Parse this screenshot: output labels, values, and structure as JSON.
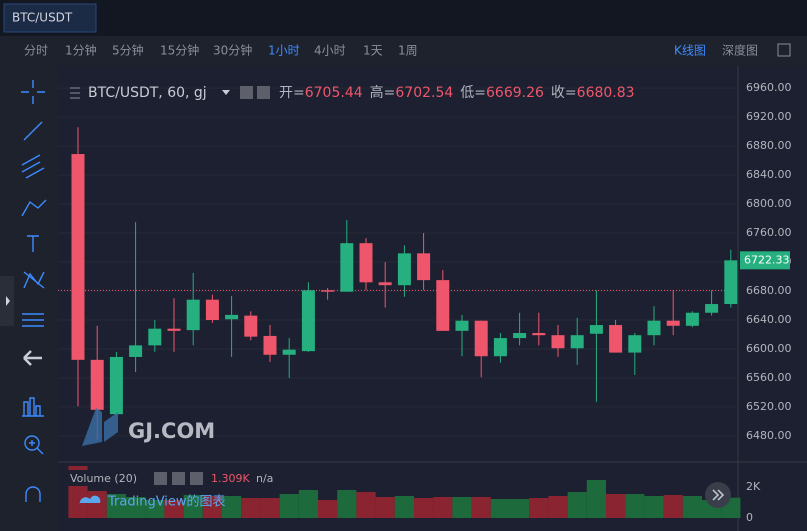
{
  "ui": {
    "tab": "BTC/USDT",
    "intervals": [
      "分时",
      "1分钟",
      "5分钟",
      "15分钟",
      "30分钟",
      "1小时",
      "4小时",
      "1天",
      "1周"
    ],
    "views": [
      "K线图",
      "深度图"
    ],
    "watermark": "GJ.COM",
    "credit": "TradingView的图表"
  },
  "legend": {
    "symbol": "BTC/USDT, 60, gj",
    "ohlc": [
      {
        "label": "开=",
        "value": 6705.44
      },
      {
        "label": "高=",
        "value": 6702.54
      },
      {
        "label": "低=",
        "value": 6669.26
      },
      {
        "label": "收=",
        "value": 6680.83
      }
    ]
  },
  "chart_data": [
    {
      "type": "candlestick",
      "up_color": "#26b07f",
      "down_color": "#f0566b",
      "open": [
        6869,
        6585,
        6510,
        6589,
        6605,
        6628,
        6626,
        6668,
        6641,
        6646,
        6618,
        6592,
        6597,
        6681,
        6679,
        6746,
        6692,
        6688,
        6732,
        6695,
        6625,
        6639,
        6590,
        6615,
        6622,
        6619,
        6601,
        6621,
        6633,
        6595,
        6619,
        6639,
        6632,
        6650,
        6662
      ],
      "high": [
        6906,
        6632,
        6596,
        6775,
        6640,
        6670,
        6705,
        6675,
        6673,
        6652,
        6633,
        6615,
        6692,
        6684,
        6778,
        6753,
        6720,
        6743,
        6760,
        6709,
        6647,
        6639,
        6622,
        6650,
        6650,
        6633,
        6643,
        6681,
        6640,
        6622,
        6659,
        6681,
        6652,
        6681,
        6737
      ],
      "low": [
        6521,
        6474,
        6509,
        6568,
        6596,
        6596,
        6605,
        6636,
        6589,
        6612,
        6582,
        6560,
        6596,
        6668,
        6679,
        6681,
        6657,
        6672,
        6681,
        6625,
        6590,
        6561,
        6581,
        6605,
        6605,
        6589,
        6578,
        6527,
        6595,
        6564,
        6605,
        6619,
        6630,
        6646,
        6657
      ],
      "close": [
        6585,
        6516,
        6589,
        6605,
        6628,
        6625,
        6668,
        6640,
        6647,
        6617,
        6592,
        6599,
        6681,
        6679,
        6746,
        6692,
        6688,
        6732,
        6695,
        6625,
        6639,
        6590,
        6615,
        6622,
        6619,
        6601,
        6619,
        6633,
        6595,
        6619,
        6639,
        6632,
        6650,
        6662,
        6722.33
      ],
      "ylim": [
        6444,
        6985
      ],
      "yticks": [
        {
          "value": 6480,
          "label": "6480.00"
        },
        {
          "value": 6520,
          "label": "6520.00"
        },
        {
          "value": 6560,
          "label": "6560.00"
        },
        {
          "value": 6600,
          "label": "6600.00"
        },
        {
          "value": 6640,
          "label": "6640.00"
        },
        {
          "value": 6680,
          "label": "6680.00"
        },
        {
          "value": 6720,
          "label": "6720.00"
        },
        {
          "value": 6760,
          "label": "6760.00"
        },
        {
          "value": 6800,
          "label": "6800.00"
        },
        {
          "value": 6840,
          "label": "6840.00"
        },
        {
          "value": 6880,
          "label": "6880.00"
        },
        {
          "value": 6920,
          "label": "6920.00"
        },
        {
          "value": 6960,
          "label": "6960.00"
        }
      ],
      "last_price": 6722.33,
      "price_line": 6680.83,
      "grid": true
    },
    {
      "type": "bar",
      "title": "Volume (20)",
      "extra": "n/a",
      "up_color": "#1d6a3c",
      "down_color": "#8a2430",
      "values": [
        3355,
        1742,
        1548,
        1355,
        1161,
        1161,
        1484,
        1419,
        1419,
        1290,
        1290,
        1548,
        1806,
        1161,
        1806,
        1677,
        1355,
        1419,
        1290,
        1355,
        1355,
        1355,
        1226,
        1226,
        1290,
        1419,
        1677,
        2452,
        1548,
        1548,
        1419,
        1484,
        1419,
        1161,
        1309
      ],
      "last": {
        "value": 1309,
        "label": "1.309K"
      },
      "ylim": [
        -323,
        3613
      ],
      "yticks": [
        0,
        {
          "value": 2000,
          "label": "2K"
        }
      ]
    }
  ]
}
